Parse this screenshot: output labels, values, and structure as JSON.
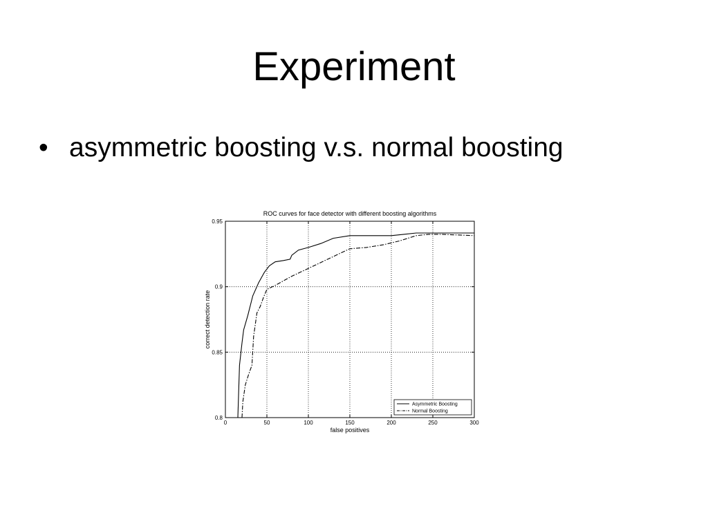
{
  "slide": {
    "title": "Experiment",
    "bullet_marker": "•",
    "bullet_text": "asymmetric boosting v.s. normal boosting"
  },
  "chart_data": {
    "type": "line",
    "title": "ROC curves for face detector with different boosting algorithms",
    "xlabel": "false positives",
    "ylabel": "correct detection rate",
    "xlim": [
      0,
      300
    ],
    "ylim": [
      0.8,
      0.95
    ],
    "x_ticks": [
      0,
      50,
      100,
      150,
      200,
      250,
      300
    ],
    "y_ticks": [
      0.8,
      0.85,
      0.9,
      0.95
    ],
    "x_tick_labels": [
      "0",
      "50",
      "100",
      "150",
      "200",
      "250",
      "300"
    ],
    "y_tick_labels": [
      "0.8",
      "0.85",
      "0.9",
      "0.95"
    ],
    "grid": true,
    "legend_position": "bottom-right",
    "series": [
      {
        "name": "Asymmetric Boosting",
        "style": "solid",
        "color": "#000000",
        "points": [
          [
            15,
            0.8
          ],
          [
            16,
            0.82
          ],
          [
            17,
            0.84
          ],
          [
            20,
            0.857
          ],
          [
            22,
            0.867
          ],
          [
            27,
            0.878
          ],
          [
            33,
            0.893
          ],
          [
            40,
            0.903
          ],
          [
            47,
            0.911
          ],
          [
            53,
            0.916
          ],
          [
            60,
            0.919
          ],
          [
            70,
            0.92
          ],
          [
            78,
            0.921
          ],
          [
            80,
            0.924
          ],
          [
            88,
            0.928
          ],
          [
            100,
            0.93
          ],
          [
            115,
            0.933
          ],
          [
            130,
            0.937
          ],
          [
            150,
            0.939
          ],
          [
            200,
            0.939
          ],
          [
            215,
            0.94
          ],
          [
            230,
            0.941
          ],
          [
            260,
            0.941
          ],
          [
            300,
            0.941
          ]
        ]
      },
      {
        "name": "Normal Boosting",
        "style": "dash-dot",
        "color": "#000000",
        "points": [
          [
            20,
            0.8
          ],
          [
            21,
            0.812
          ],
          [
            24,
            0.825
          ],
          [
            28,
            0.833
          ],
          [
            32,
            0.84
          ],
          [
            34,
            0.862
          ],
          [
            38,
            0.88
          ],
          [
            42,
            0.885
          ],
          [
            46,
            0.892
          ],
          [
            50,
            0.898
          ],
          [
            60,
            0.901
          ],
          [
            80,
            0.908
          ],
          [
            100,
            0.914
          ],
          [
            120,
            0.92
          ],
          [
            140,
            0.926
          ],
          [
            150,
            0.929
          ],
          [
            170,
            0.93
          ],
          [
            190,
            0.932
          ],
          [
            210,
            0.935
          ],
          [
            230,
            0.939
          ],
          [
            245,
            0.94
          ],
          [
            260,
            0.94
          ],
          [
            300,
            0.939
          ]
        ]
      }
    ]
  }
}
